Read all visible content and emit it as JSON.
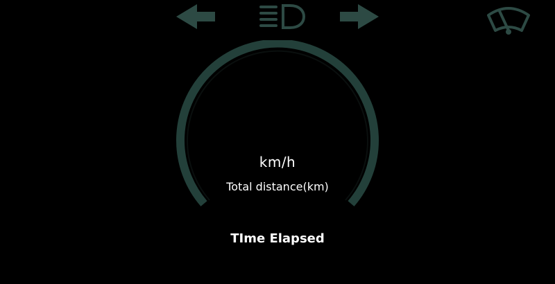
{
  "colors": {
    "background": "#000000",
    "indicator": "#2d4a44",
    "gauge_arc": "#23403a",
    "text": "#ffffff"
  },
  "indicators": {
    "left_turn": {
      "icon": "left-arrow-icon"
    },
    "headlight": {
      "icon": "headlight-icon"
    },
    "right_turn": {
      "icon": "right-arrow-icon"
    },
    "wiper": {
      "icon": "wiper-icon"
    }
  },
  "gauge": {
    "speed_unit": "km/h",
    "distance_label": "Total distance(km)"
  },
  "time": {
    "label": "TIme Elapsed"
  }
}
